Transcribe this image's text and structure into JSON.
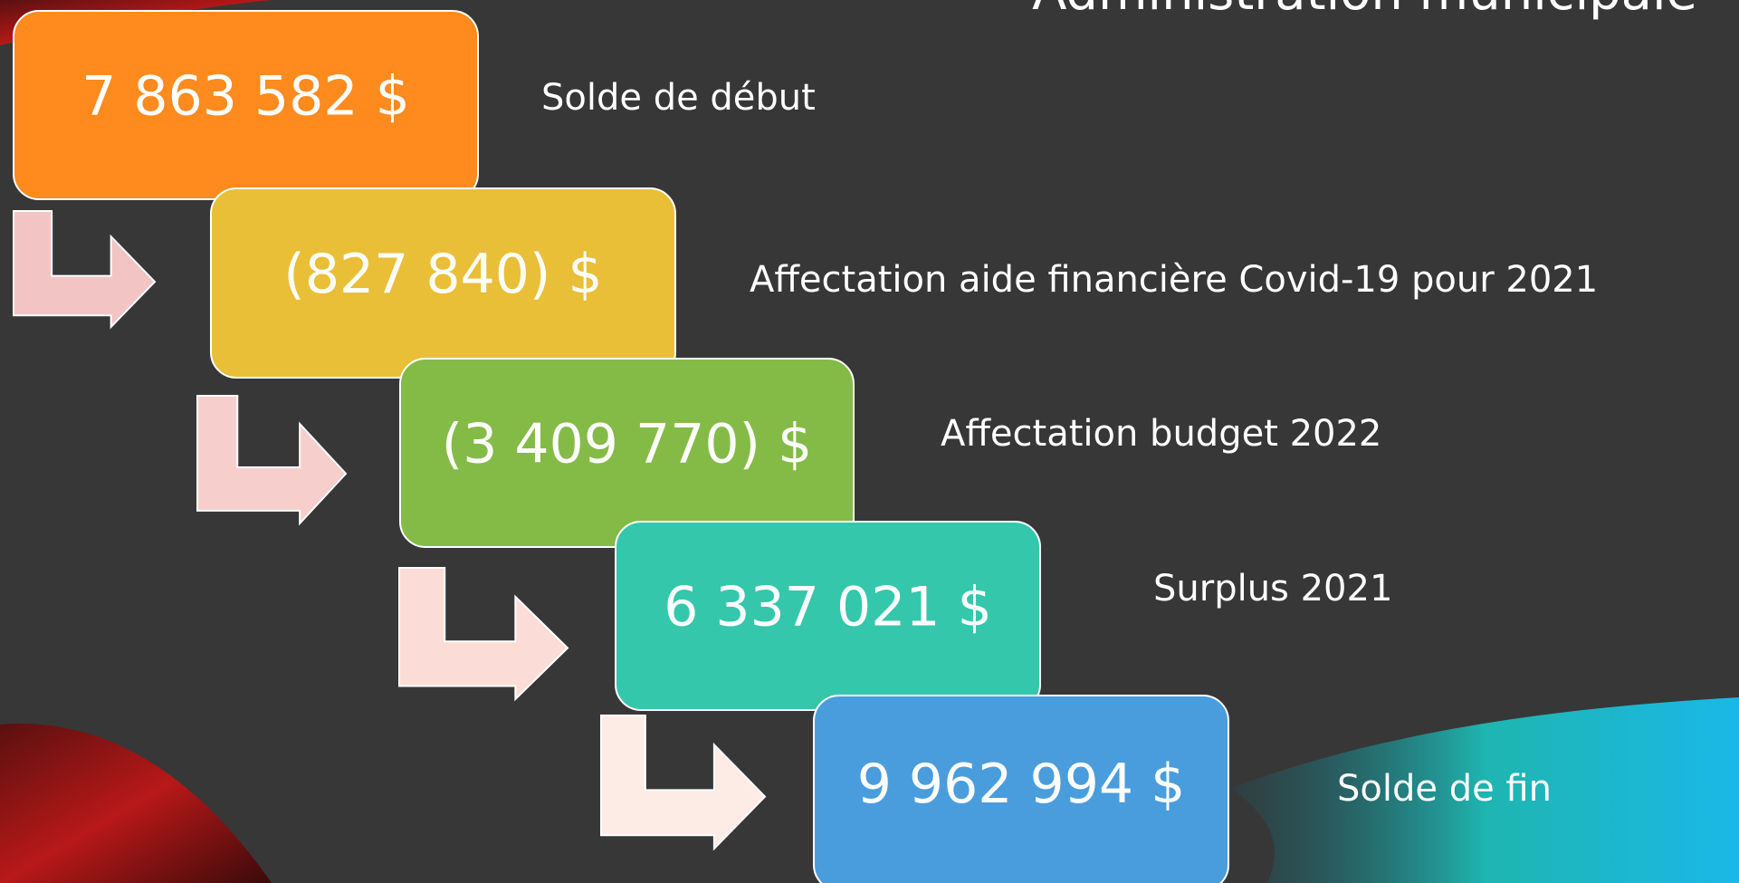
{
  "title": "Administration municipale",
  "steps": [
    {
      "amount": "7 863 582 $",
      "label": "Solde de début"
    },
    {
      "amount": "(827 840) $",
      "label": "Affectation aide financière Covid-19 pour 2021"
    },
    {
      "amount": "(3 409 770) $",
      "label": "Affectation budget 2022"
    },
    {
      "amount": "6 337 021 $",
      "label": "Surplus 2021"
    },
    {
      "amount": "9 962 994 $",
      "label": "Solde de fin"
    }
  ]
}
